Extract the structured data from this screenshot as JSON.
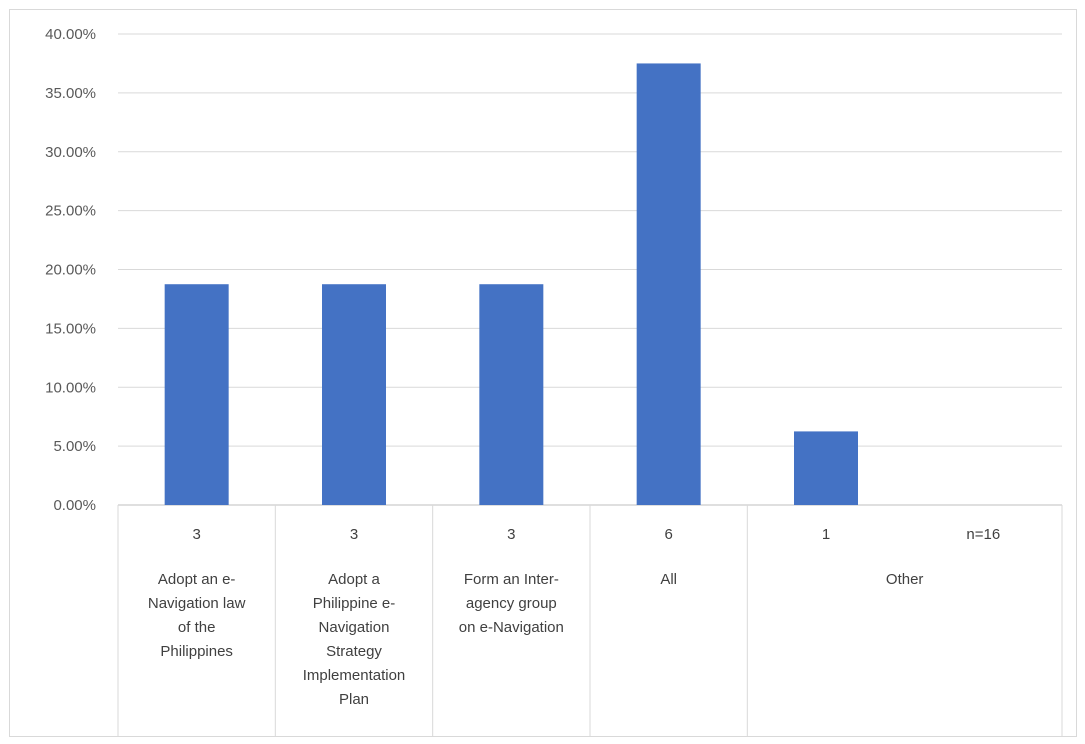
{
  "chart_data": {
    "type": "bar",
    "title": "",
    "xlabel": "",
    "ylabel": "",
    "ylim": [
      0,
      0.4
    ],
    "ytick_step": 0.05,
    "ytick_labels": [
      "0.00%",
      "5.00%",
      "10.00%",
      "15.00%",
      "20.00%",
      "25.00%",
      "30.00%",
      "35.00%",
      "40.00%"
    ],
    "grid": true,
    "legend": "none",
    "bar_color": "#4472c4",
    "categories": [
      "Adopt an e-Navigation law of the Philippines",
      "Adopt a Philippine e-Navigation Strategy Implementation Plan",
      "Form an Inter-agency group on e-Navigation",
      "All",
      "Other"
    ],
    "values": [
      0.1875,
      0.1875,
      0.1875,
      0.375,
      0.0625
    ],
    "counts": [
      "3",
      "3",
      "3",
      "6",
      "1"
    ],
    "category_label_lines": [
      [
        "Adopt an e-",
        "Navigation law",
        "of the",
        "Philippines"
      ],
      [
        "Adopt a",
        "Philippine e-",
        "Navigation",
        "Strategy",
        "Implementation",
        "Plan"
      ],
      [
        "Form an Inter-",
        "agency group",
        "on e-Navigation"
      ],
      [
        "All"
      ],
      [
        "Other"
      ]
    ],
    "note": "n=16"
  }
}
